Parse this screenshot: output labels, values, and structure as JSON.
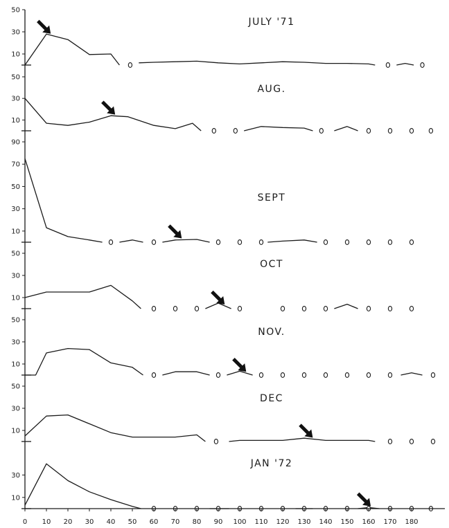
{
  "chart_data": {
    "type": "line",
    "x": [
      0,
      10,
      20,
      30,
      40,
      50,
      60,
      70,
      80,
      90,
      100,
      110,
      120,
      130,
      140,
      150,
      160,
      170,
      180
    ],
    "x_ticks": [
      "0",
      "10",
      "20",
      "30",
      "40",
      "50",
      "60",
      "70",
      "80",
      "90",
      "100",
      "110",
      "120",
      "130",
      "140",
      "150",
      "160",
      "170",
      "180"
    ],
    "xlim": [
      0,
      185
    ],
    "grid": false,
    "series": [
      {
        "name": "JULY '71",
        "ylim": [
          0,
          50
        ],
        "y_ticks": [
          "10",
          "30",
          "50"
        ],
        "segments": [
          [
            [
              0,
              0
            ],
            [
              10,
              28
            ],
            [
              20,
              23
            ],
            [
              30,
              9.5
            ],
            [
              40,
              10
            ],
            [
              44,
              0
            ]
          ],
          [
            [
              53,
              2
            ],
            [
              60,
              2.5
            ],
            [
              70,
              3
            ],
            [
              80,
              3.5
            ],
            [
              90,
              2
            ],
            [
              100,
              1
            ],
            [
              110,
              2
            ],
            [
              120,
              3
            ],
            [
              130,
              2.5
            ],
            [
              140,
              1.5
            ],
            [
              150,
              1.5
            ],
            [
              160,
              1
            ],
            [
              163,
              0
            ]
          ],
          [
            [
              173,
              0
            ],
            [
              177,
              1.5
            ],
            [
              181,
              0
            ]
          ]
        ],
        "zeros": [
          49,
          169,
          185
        ],
        "arrow_x": 12
      },
      {
        "name": "AUG.",
        "ylim": [
          0,
          50
        ],
        "y_ticks": [
          "10",
          "30",
          "50"
        ],
        "segments": [
          [
            [
              0,
              30
            ],
            [
              10,
              7
            ],
            [
              20,
              5
            ],
            [
              30,
              8
            ],
            [
              40,
              14
            ],
            [
              48,
              13
            ],
            [
              60,
              5
            ],
            [
              70,
              2
            ],
            [
              78,
              7
            ],
            [
              82,
              0
            ]
          ],
          [
            [
              102,
              0
            ],
            [
              110,
              4
            ],
            [
              120,
              3
            ],
            [
              130,
              2.5
            ],
            [
              134,
              0
            ]
          ],
          [
            [
              144,
              0
            ],
            [
              150,
              4
            ],
            [
              155,
              0
            ]
          ]
        ],
        "zeros": [
          88,
          98,
          138,
          160,
          170,
          180,
          189
        ],
        "arrow_x": 42
      },
      {
        "name": "SEPT",
        "ylim": [
          0,
          90
        ],
        "y_ticks": [
          "10",
          "30",
          "50",
          "70",
          "90"
        ],
        "segments": [
          [
            [
              0,
              75
            ],
            [
              10,
              13
            ],
            [
              20,
              5
            ],
            [
              30,
              2
            ],
            [
              36,
              0
            ]
          ],
          [
            [
              44,
              0
            ],
            [
              50,
              2
            ],
            [
              55,
              0
            ]
          ],
          [
            [
              64,
              0
            ],
            [
              70,
              2
            ],
            [
              80,
              2.5
            ],
            [
              86,
              0
            ]
          ],
          [
            [
              113,
              0
            ],
            [
              120,
              1
            ],
            [
              130,
              2
            ],
            [
              136,
              0
            ]
          ]
        ],
        "zeros": [
          40,
          60,
          90,
          100,
          110,
          140,
          150,
          160,
          170,
          180
        ],
        "arrow_x": 73
      },
      {
        "name": "OCT",
        "ylim": [
          0,
          50
        ],
        "y_ticks": [
          "10",
          "30",
          "50"
        ],
        "segments": [
          [
            [
              0,
              10
            ],
            [
              10,
              15
            ],
            [
              20,
              15
            ],
            [
              30,
              15
            ],
            [
              40,
              21
            ],
            [
              50,
              7
            ],
            [
              54,
              0
            ]
          ],
          [
            [
              84,
              0
            ],
            [
              90,
              5
            ],
            [
              96,
              0
            ]
          ],
          [
            [
              144,
              0
            ],
            [
              150,
              4
            ],
            [
              155,
              0
            ]
          ]
        ],
        "zeros": [
          60,
          70,
          80,
          100,
          120,
          130,
          140,
          160,
          170,
          180
        ],
        "arrow_x": 93
      },
      {
        "name": "NOV.",
        "ylim": [
          0,
          50
        ],
        "y_ticks": [
          "10",
          "30",
          "50"
        ],
        "segments": [
          [
            [
              0,
              0
            ],
            [
              5,
              0
            ],
            [
              10,
              20
            ],
            [
              20,
              24
            ],
            [
              30,
              23
            ],
            [
              40,
              11
            ],
            [
              50,
              7
            ],
            [
              55,
              0
            ]
          ],
          [
            [
              64,
              0
            ],
            [
              70,
              3
            ],
            [
              80,
              3
            ],
            [
              86,
              0
            ]
          ],
          [
            [
              94,
              0
            ],
            [
              100,
              3.5
            ],
            [
              106,
              0
            ]
          ],
          [
            [
              175,
              0
            ],
            [
              180,
              2
            ],
            [
              185,
              0
            ]
          ]
        ],
        "zeros": [
          60,
          90,
          110,
          120,
          130,
          140,
          150,
          160,
          170,
          190
        ],
        "arrow_x": 103
      },
      {
        "name": "DEC",
        "ylim": [
          0,
          50
        ],
        "y_ticks": [
          "10",
          "30",
          "50"
        ],
        "segments": [
          [
            [
              0,
              5
            ],
            [
              10,
              23
            ],
            [
              20,
              24
            ],
            [
              30,
              16
            ],
            [
              40,
              8
            ],
            [
              50,
              4
            ],
            [
              60,
              4
            ],
            [
              70,
              4
            ],
            [
              80,
              6
            ],
            [
              84,
              0
            ]
          ],
          [
            [
              95,
              0
            ],
            [
              100,
              1
            ],
            [
              110,
              1
            ],
            [
              120,
              1
            ],
            [
              130,
              3
            ],
            [
              140,
              1
            ],
            [
              150,
              1
            ],
            [
              160,
              1
            ],
            [
              163,
              0
            ]
          ]
        ],
        "zeros": [
          89,
          170,
          180,
          190
        ],
        "arrow_x": 134
      },
      {
        "name": "JAN '72",
        "ylim": [
          0,
          50
        ],
        "y_ticks": [
          "10",
          "30"
        ],
        "segments": [
          [
            [
              0,
              3
            ],
            [
              10,
              40
            ],
            [
              20,
              25
            ],
            [
              30,
              15
            ],
            [
              40,
              8
            ],
            [
              50,
              2
            ],
            [
              54,
              0
            ]
          ],
          [
            [
              86,
              0
            ],
            [
              95,
              0
            ]
          ],
          [
            [
              126,
              0
            ],
            [
              134,
              0
            ]
          ],
          [
            [
              155,
              0
            ],
            [
              160,
              1
            ],
            [
              165,
              0
            ]
          ]
        ],
        "zeros": [
          60,
          70,
          80,
          90,
          100,
          110,
          120,
          130,
          140,
          150,
          160,
          170,
          180,
          189
        ],
        "arrow_x": 161
      }
    ]
  }
}
